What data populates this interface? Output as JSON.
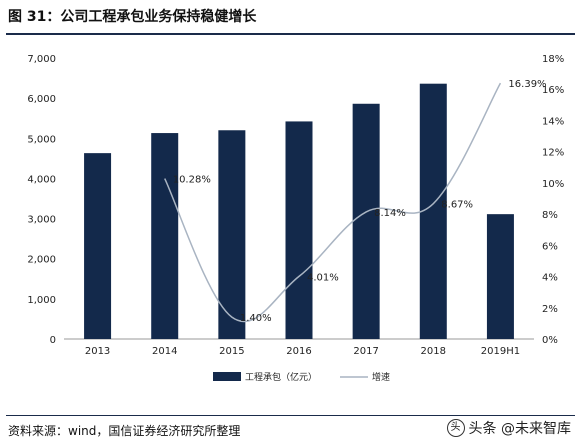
{
  "header": {
    "title": "图 31：公司工程承包业务保持稳健增长"
  },
  "chart_data": {
    "type": "bar",
    "categories": [
      "2013",
      "2014",
      "2015",
      "2016",
      "2017",
      "2018",
      "2019H1"
    ],
    "series": [
      {
        "name": "工程承包（亿元）",
        "type": "bar",
        "axis": "left",
        "color": "#13294b",
        "values": [
          4630,
          5130,
          5200,
          5420,
          5860,
          6360,
          3110
        ]
      },
      {
        "name": "增速",
        "type": "line",
        "axis": "right",
        "color": "#a9b4c2",
        "values": [
          null,
          10.28,
          1.4,
          4.01,
          8.14,
          8.67,
          16.39
        ],
        "labels": [
          "",
          "10.28%",
          "1.40%",
          "4.01%",
          "8.14%",
          "8.67%",
          "16.39%"
        ]
      }
    ],
    "y_left": {
      "range": [
        0,
        7000
      ],
      "ticks": [
        "0",
        "1,000",
        "2,000",
        "3,000",
        "4,000",
        "5,000",
        "6,000",
        "7,000"
      ]
    },
    "y_right": {
      "range": [
        0,
        18
      ],
      "ticks": [
        "0%",
        "2%",
        "4%",
        "6%",
        "8%",
        "10%",
        "12%",
        "14%",
        "16%",
        "18%"
      ]
    },
    "legend": {
      "position": "bottom"
    },
    "grid": false
  },
  "footer": {
    "source": "资料来源：wind，国信证券经济研究所整理",
    "watermark": "头条 @未来智库",
    "watermark_icon": "toutiao-logo-icon"
  }
}
